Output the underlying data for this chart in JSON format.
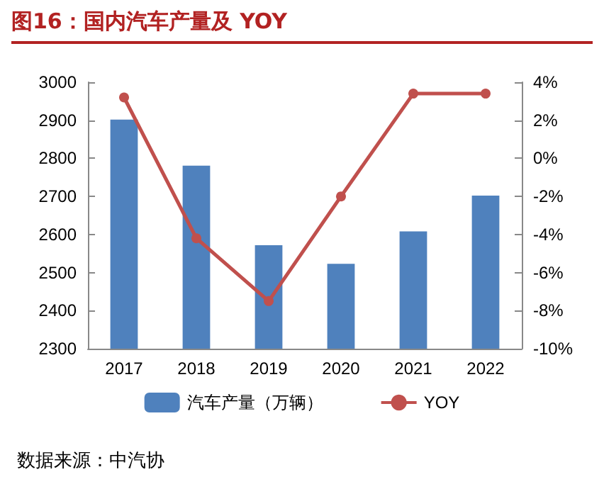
{
  "chart_data": {
    "type": "bar",
    "title": "图16：国内汽车产量及 YOY",
    "annotations": [
      "数据来源：中汽协"
    ],
    "categories": [
      "2017",
      "2018",
      "2019",
      "2020",
      "2021",
      "2022"
    ],
    "series": [
      {
        "name": "汽车产量（万辆）",
        "color": "#4f81bd",
        "values": [
          2902,
          2781,
          2572,
          2523,
          2608,
          2702
        ]
      },
      {
        "name": "YOY",
        "type": "line",
        "axis": "y2",
        "color": "#c0504d",
        "values": [
          3.2,
          -4.2,
          -7.5,
          -2.0,
          3.4,
          3.4
        ]
      }
    ],
    "ylim": [
      2300,
      3000
    ],
    "yticks": [
      2300,
      2400,
      2500,
      2600,
      2700,
      2800,
      2900,
      3000
    ],
    "y2lim": [
      -10,
      4
    ],
    "y2ticks": [
      {
        "value": -10,
        "label": "-10%"
      },
      {
        "value": -8,
        "label": "-8%"
      },
      {
        "value": -6,
        "label": "-6%"
      },
      {
        "value": -4,
        "label": "-4%"
      },
      {
        "value": -2,
        "label": "-2%"
      },
      {
        "value": 0,
        "label": "0%"
      },
      {
        "value": 2,
        "label": "2%"
      },
      {
        "value": 4,
        "label": "4%"
      }
    ],
    "grid": false,
    "legend": "bottom",
    "marker": "circle"
  }
}
